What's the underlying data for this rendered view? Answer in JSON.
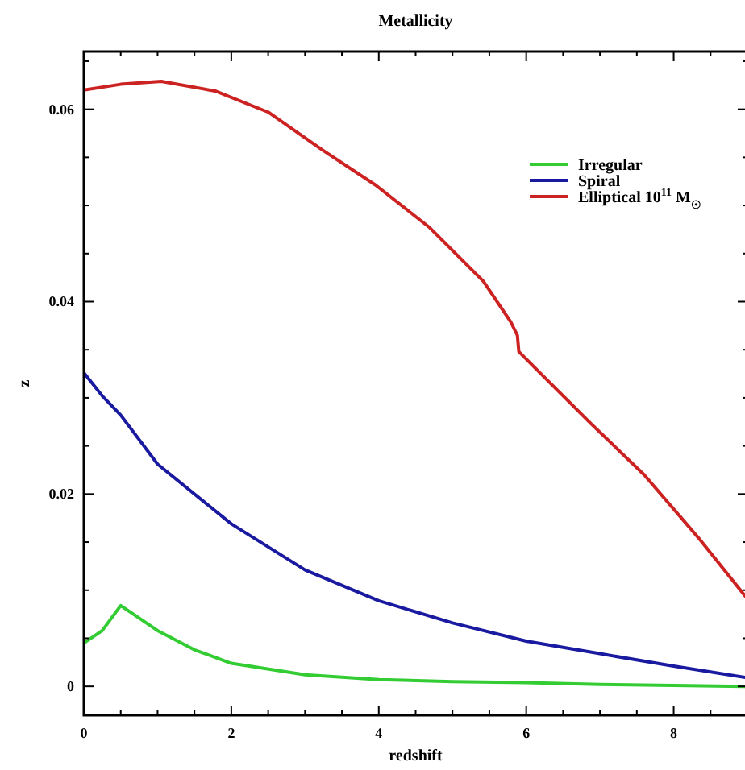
{
  "chart_data": {
    "type": "line",
    "title": "Metallicity",
    "xlabel": "redshift",
    "ylabel": "z",
    "xlim": [
      0,
      9
    ],
    "ylim": [
      -0.003,
      0.066
    ],
    "xticks": [
      0,
      {
        "value": 0.5,
        "label": null
      },
      {
        "value": 1,
        "label": null
      },
      {
        "value": 1.5,
        "label": null
      },
      2,
      {
        "value": 2.5,
        "label": null
      },
      {
        "value": 3,
        "label": null
      },
      {
        "value": 3.5,
        "label": null
      },
      4,
      {
        "value": 4.5,
        "label": null
      },
      {
        "value": 5,
        "label": null
      },
      {
        "value": 5.5,
        "label": null
      },
      6,
      {
        "value": 6.5,
        "label": null
      },
      {
        "value": 7,
        "label": null
      },
      {
        "value": 7.5,
        "label": null
      },
      8,
      {
        "value": 8.5,
        "label": null
      }
    ],
    "yticks": [
      0,
      {
        "value": 0.005,
        "label": null
      },
      {
        "value": 0.01,
        "label": null
      },
      {
        "value": 0.015,
        "label": null
      },
      0.02,
      {
        "value": 0.025,
        "label": null
      },
      {
        "value": 0.03,
        "label": null
      },
      {
        "value": 0.035,
        "label": null
      },
      0.04,
      {
        "value": 0.045,
        "label": null
      },
      {
        "value": 0.05,
        "label": null
      },
      {
        "value": 0.055,
        "label": null
      },
      0.06,
      {
        "value": 0.065,
        "label": null
      }
    ],
    "grid": false,
    "legend": "top right",
    "marker": "none",
    "line_style": "solid",
    "series": [
      {
        "name": "Irregular",
        "color": "#33cc33",
        "x": [
          0,
          0.25,
          0.5,
          1,
          1.5,
          2,
          3,
          4,
          5,
          6,
          7,
          8,
          9
        ],
        "values": [
          0.0045,
          0.0058,
          0.0084,
          0.0058,
          0.0038,
          0.0024,
          0.0012,
          0.0007,
          0.0005,
          0.0004,
          0.0002,
          0.0001,
          0
        ]
      },
      {
        "name": "Spiral",
        "color": "#1a1aa0",
        "x": [
          0,
          0.25,
          0.5,
          1,
          2,
          3,
          4,
          5,
          6,
          7,
          8,
          9
        ],
        "values": [
          0.0326,
          0.0302,
          0.0282,
          0.0231,
          0.0169,
          0.0121,
          0.0089,
          0.0066,
          0.0047,
          0.0034,
          0.0021,
          0.0009
        ]
      },
      {
        "name": "Elliptical 10$^{11}$ M$_{☉}$",
        "color": "#cc2222",
        "x": [
          0,
          0.5,
          1.05,
          1.78,
          2.5,
          3.23,
          3.96,
          4.69,
          5.42,
          5.79,
          5.88,
          5.9,
          6.37,
          6.88,
          7.6,
          8.33,
          9
        ],
        "values": [
          0.062,
          0.0626,
          0.0629,
          0.0619,
          0.0597,
          0.0558,
          0.0521,
          0.0477,
          0.0421,
          0.0379,
          0.0365,
          0.0348,
          0.0312,
          0.0273,
          0.022,
          0.0155,
          0.0091
        ]
      }
    ]
  }
}
